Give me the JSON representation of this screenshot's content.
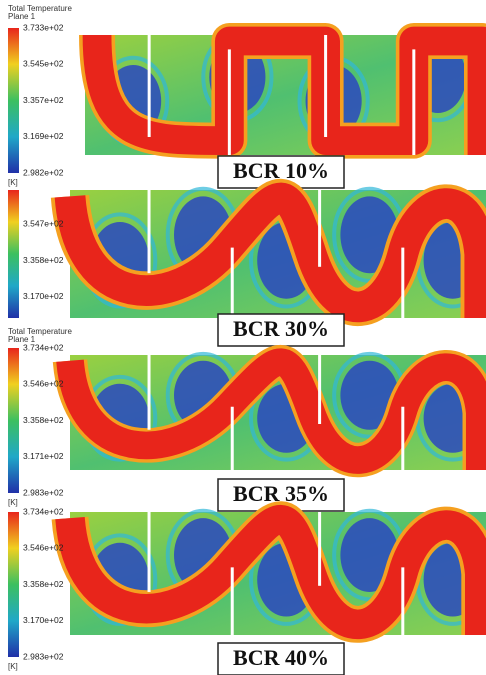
{
  "panels": [
    {
      "legend_title": "Total Temperature",
      "legend_subtitle": "Plane 1",
      "ticks": [
        "3.733e+02",
        "3.545e+02",
        "3.357e+02",
        "3.169e+02",
        "2.982e+02"
      ],
      "unit": "[K]",
      "caption": "BCR 10%"
    },
    {
      "ticks": [
        "3.547e+02",
        "3.358e+02",
        "3.170e+02"
      ],
      "caption": "BCR 30%"
    },
    {
      "legend_title": "Total Temperature",
      "legend_subtitle": "Plane 1",
      "ticks": [
        "3.734e+02",
        "3.546e+02",
        "3.358e+02",
        "3.171e+02",
        "2.983e+02"
      ],
      "unit": "[K]",
      "caption": "BCR 35%"
    },
    {
      "ticks": [
        "3.734e+02",
        "3.546e+02",
        "3.358e+02",
        "3.170e+02",
        "2.983e+02"
      ],
      "unit": "[K]",
      "caption": "BCR 40%"
    }
  ]
}
